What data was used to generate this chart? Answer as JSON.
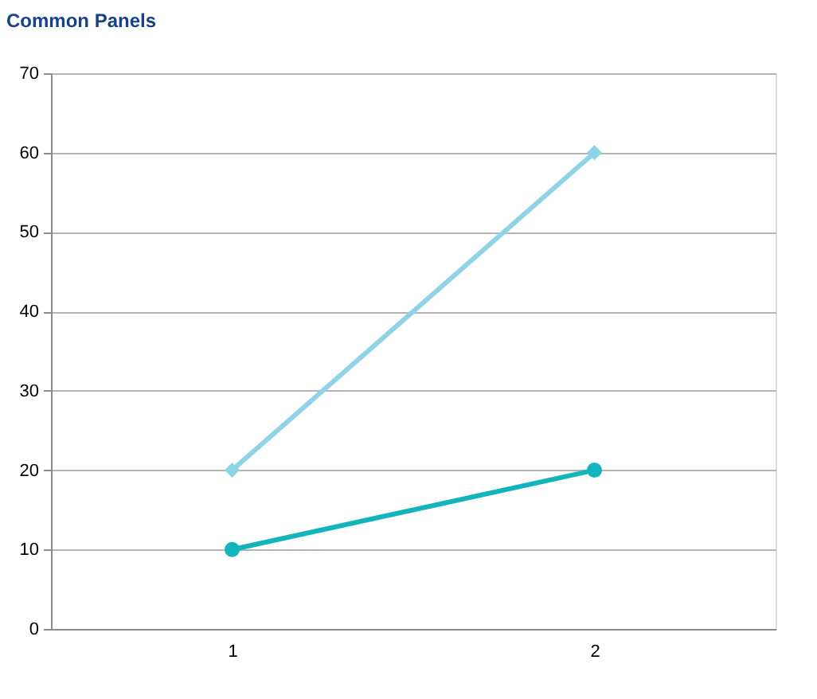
{
  "chart_data": {
    "type": "line",
    "title": "Common Panels",
    "categories": [
      "1",
      "2"
    ],
    "series": [
      {
        "color": "#8fd4e6",
        "marker": "diamond",
        "values": [
          20,
          60
        ]
      },
      {
        "color": "#12b5bb",
        "marker": "circle",
        "values": [
          10,
          20
        ]
      }
    ],
    "ylim": [
      0,
      70
    ],
    "yticks": [
      0,
      10,
      20,
      30,
      40,
      50,
      60,
      70
    ],
    "grid": "y",
    "line_style": "solid"
  }
}
